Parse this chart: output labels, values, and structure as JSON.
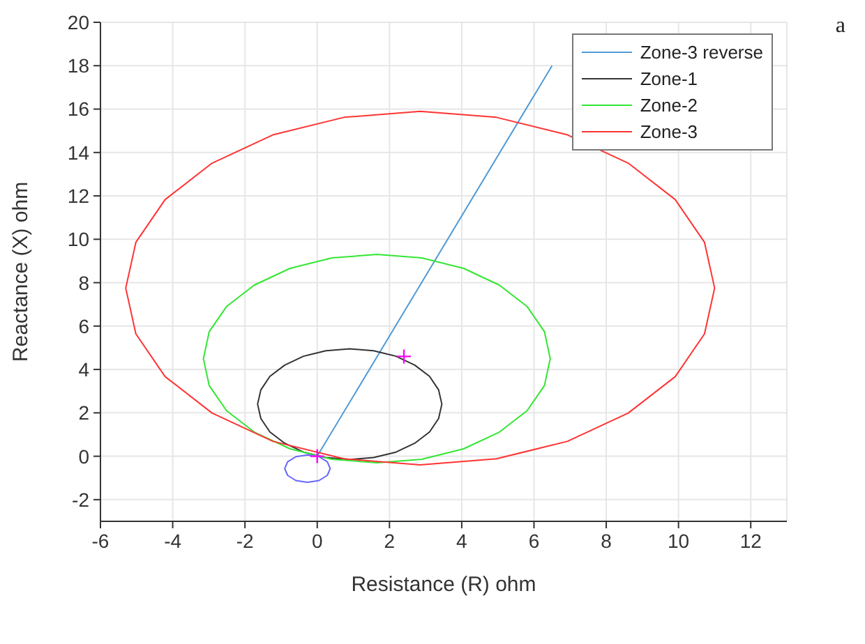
{
  "chart_data": {
    "type": "line",
    "xlabel": "Resistance (R) ohm",
    "ylabel": "Reactance (X) ohm",
    "xlim": [
      -6,
      13
    ],
    "xticks": [
      -6,
      -4,
      -2,
      0,
      2,
      4,
      6,
      8,
      10,
      12
    ],
    "ylim": [
      -3,
      20
    ],
    "yticks": [
      -2,
      0,
      2,
      4,
      6,
      8,
      10,
      12,
      14,
      16,
      18,
      20
    ],
    "grid": true,
    "legend": "top right",
    "annotations": [
      "a"
    ],
    "series": [
      {
        "name": "Zone-3 reverse",
        "color": "#4f9ad6",
        "x": [
          0,
          6.5
        ],
        "values": [
          0,
          18
        ]
      },
      {
        "name": "Zone-1",
        "color": "#333333",
        "x": [
          3.45,
          3.36,
          3.11,
          2.7,
          2.18,
          1.56,
          0.9,
          0.24,
          -0.38,
          -0.9,
          -1.31,
          -1.56,
          -1.65,
          -1.56,
          -1.31,
          -0.9,
          -0.38,
          0.24,
          0.9,
          1.56,
          2.18,
          2.7,
          3.11,
          3.36,
          3.45,
          3.36
        ],
        "values": [
          2.4,
          3.06,
          3.68,
          4.2,
          4.61,
          4.86,
          4.95,
          4.86,
          4.61,
          4.2,
          3.68,
          3.06,
          2.4,
          1.74,
          1.12,
          0.6,
          0.19,
          -0.06,
          -0.15,
          -0.06,
          0.19,
          0.6,
          1.12,
          1.74,
          2.4,
          3.06
        ]
      },
      {
        "name": "Zone-2",
        "color": "#33e633",
        "x": [
          6.45,
          6.29,
          5.81,
          5.04,
          4.05,
          2.89,
          1.65,
          0.41,
          -0.75,
          -1.74,
          -2.51,
          -2.99,
          -3.15,
          -2.99,
          -2.51,
          -1.74,
          -0.75,
          0.41,
          1.65,
          2.89,
          4.05,
          5.04,
          5.81,
          6.29,
          6.45,
          6.29
        ],
        "values": [
          4.5,
          5.74,
          6.9,
          7.89,
          8.66,
          9.14,
          9.3,
          9.14,
          8.66,
          7.89,
          6.9,
          5.74,
          4.5,
          3.26,
          2.1,
          1.11,
          0.34,
          -0.14,
          -0.3,
          -0.14,
          0.34,
          1.11,
          2.1,
          3.26,
          4.5,
          5.74
        ]
      },
      {
        "name": "Zone-3",
        "color": "#ff3333",
        "x": [
          11.0,
          10.72,
          9.91,
          8.61,
          6.93,
          4.96,
          2.85,
          0.74,
          -1.23,
          -2.91,
          -4.21,
          -5.02,
          -5.3,
          -5.02,
          -4.21,
          -2.91,
          -1.23,
          0.74,
          2.85,
          4.96,
          6.93,
          8.61,
          9.91,
          10.72,
          11.0,
          10.72
        ],
        "values": [
          7.75,
          9.86,
          11.83,
          13.51,
          14.81,
          15.62,
          15.9,
          15.62,
          14.81,
          13.51,
          11.83,
          9.86,
          7.75,
          5.64,
          3.67,
          1.99,
          0.69,
          -0.12,
          -0.4,
          -0.12,
          0.69,
          1.99,
          3.67,
          5.64,
          7.75,
          9.86
        ]
      },
      {
        "color": "#6666ff",
        "x": [
          0.36,
          0.28,
          0.05,
          -0.27,
          -0.59,
          -0.82,
          -0.9,
          -0.82,
          -0.59,
          -0.27,
          0.05,
          0.28,
          0.36,
          0.28
        ],
        "values": [
          -0.57,
          -0.26,
          -0.02,
          0.06,
          -0.02,
          -0.26,
          -0.57,
          -0.88,
          -1.12,
          -1.2,
          -1.12,
          -0.88,
          -0.57,
          -0.26
        ]
      },
      {
        "type": "scatter",
        "marker": "cross",
        "color": "#ff00ff",
        "x": [
          0,
          2.4
        ],
        "values": [
          0,
          4.6
        ]
      }
    ]
  }
}
